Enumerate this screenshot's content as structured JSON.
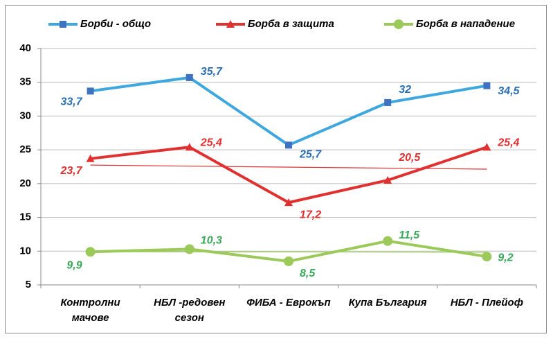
{
  "chart_data": {
    "type": "line",
    "categories": [
      "Контролни\nмачове",
      "НБЛ -редовен\nсезон",
      "ФИБА - Еврокъп",
      "Купа България",
      "НБЛ - Плейоф"
    ],
    "series": [
      {
        "name": "Борби - общо",
        "color": "#3ea7dd",
        "label_color": "#2a6fb3",
        "marker": "square",
        "values": [
          33.7,
          35.7,
          25.7,
          32,
          34.5
        ],
        "value_labels": [
          "33,7",
          "35,7",
          "25,7",
          "32",
          "34,5"
        ]
      },
      {
        "name": "Борба в защита",
        "color": "#e0302f",
        "label_color": "#e0302f",
        "marker": "triangle",
        "trendline": "linear",
        "values": [
          23.7,
          25.4,
          17.2,
          20.5,
          25.4
        ],
        "value_labels": [
          "23,7",
          "25,4",
          "17,2",
          "20,5",
          "25,4"
        ]
      },
      {
        "name": "Борба в нападение",
        "color": "#9bc95a",
        "label_color": "#3aa85a",
        "marker": "circle",
        "trendline": "linear",
        "values": [
          9.9,
          10.3,
          8.5,
          11.5,
          9.2
        ],
        "value_labels": [
          "9,9",
          "10,3",
          "8,5",
          "11,5",
          "9,2"
        ]
      }
    ],
    "ylim": [
      5,
      40
    ],
    "yticks": [
      5,
      10,
      15,
      20,
      25,
      30,
      35,
      40
    ],
    "grid": true,
    "legend": "top"
  }
}
